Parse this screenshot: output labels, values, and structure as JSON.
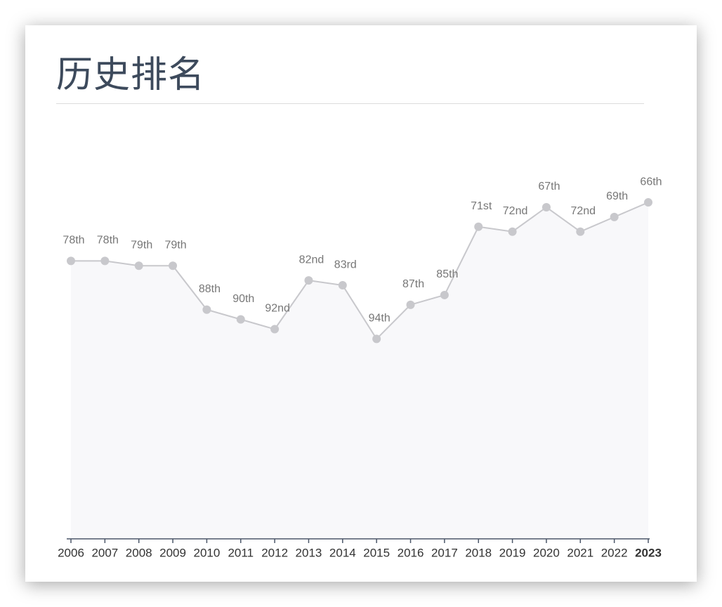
{
  "chart_data": {
    "type": "line",
    "title": "历史排名",
    "categories": [
      "2006",
      "2007",
      "2008",
      "2009",
      "2010",
      "2011",
      "2012",
      "2013",
      "2014",
      "2015",
      "2016",
      "2017",
      "2018",
      "2019",
      "2020",
      "2021",
      "2022",
      "2023"
    ],
    "values": [
      78,
      78,
      79,
      79,
      88,
      90,
      92,
      82,
      83,
      94,
      87,
      85,
      71,
      72,
      67,
      72,
      69,
      66
    ],
    "value_labels": [
      "78th",
      "78th",
      "79th",
      "79th",
      "88th",
      "90th",
      "92nd",
      "82nd",
      "83rd",
      "94th",
      "87th",
      "85th",
      "71st",
      "72nd",
      "67th",
      "72nd",
      "69th",
      "66th"
    ],
    "color": "#c8c8cc",
    "area_color": "#f8f8fa",
    "ylim": [
      135,
      50
    ]
  }
}
